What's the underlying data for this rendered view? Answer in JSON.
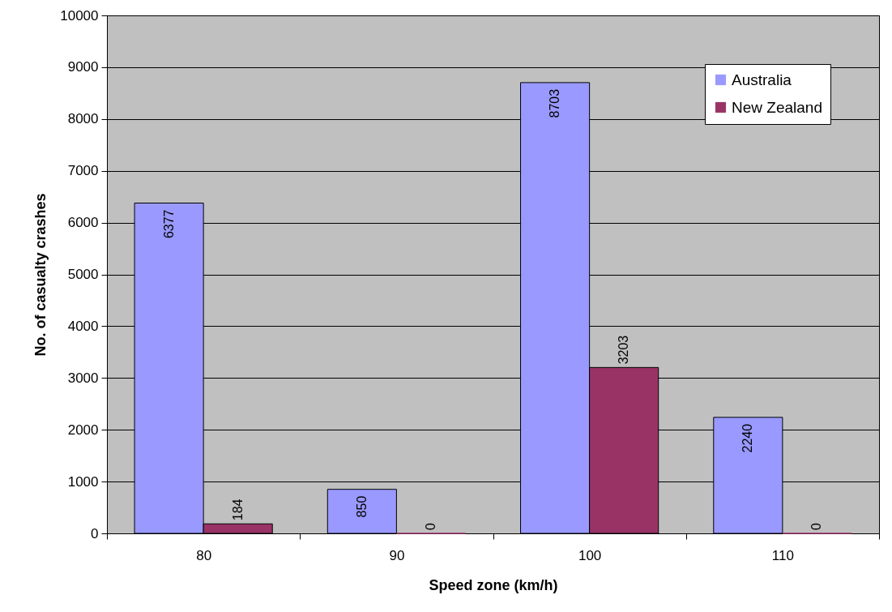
{
  "chart_data": {
    "type": "bar",
    "xlabel": "Speed zone (km/h)",
    "ylabel": "No. of casualty crashes",
    "categories": [
      "80",
      "90",
      "100",
      "110"
    ],
    "series": [
      {
        "name": "Australia",
        "color": "#9999ff",
        "values": [
          6377,
          850,
          8703,
          2240
        ]
      },
      {
        "name": "New Zealand",
        "color": "#993366",
        "values": [
          184,
          0,
          3203,
          0
        ]
      }
    ],
    "ylim": [
      0,
      10000
    ],
    "yticks": [
      0,
      1000,
      2000,
      3000,
      4000,
      5000,
      6000,
      7000,
      8000,
      9000,
      10000
    ],
    "grid": "y",
    "legend": "top right",
    "data_labels": true
  }
}
